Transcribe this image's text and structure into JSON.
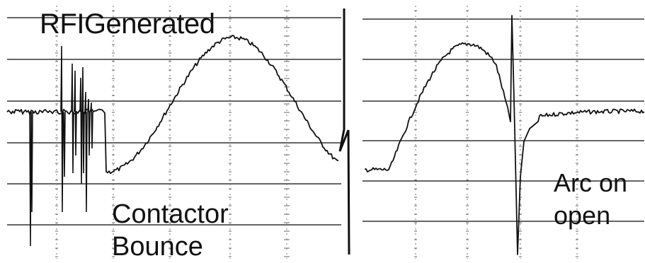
{
  "figure": {
    "annotations": {
      "rfi": "RFIGenerated",
      "bounce": [
        "Contactor",
        "Bounce"
      ],
      "arc": [
        "Arc on",
        "open"
      ]
    },
    "colors": {
      "background": "#ffffff",
      "ink": "#111111",
      "grid": "#333333"
    }
  }
}
